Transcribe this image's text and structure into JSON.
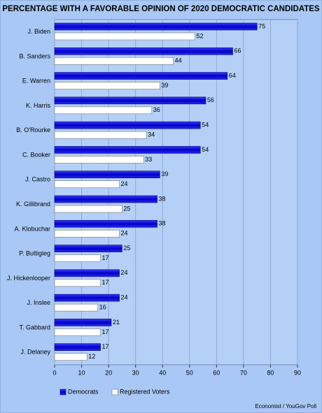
{
  "chart_data": {
    "type": "bar",
    "orientation": "horizontal",
    "title": "PERCENTAGE WITH A FAVORABLE OPINION OF 2020 DEMOCRATIC CANDIDATES",
    "categories": [
      "J. Biden",
      "B. Sanders",
      "E. Warren",
      "K. Harris",
      "B. O'Rourke",
      "C. Booker",
      "J. Castro",
      "K. Gillibrand",
      "A. Klobuchar",
      "P. Buttigieg",
      "J. Hickenlooper",
      "J. Inslee",
      "T. Gabbard",
      "J. Delaney"
    ],
    "series": [
      {
        "name": "Democrats",
        "color": "#1a1ad6",
        "values": [
          75,
          66,
          64,
          56,
          54,
          54,
          39,
          38,
          38,
          25,
          24,
          24,
          21,
          17
        ]
      },
      {
        "name": "Registered Voters",
        "color": "#ffffff",
        "values": [
          52,
          44,
          39,
          36,
          34,
          33,
          24,
          25,
          24,
          17,
          17,
          16,
          17,
          12
        ]
      }
    ],
    "xlim": [
      0,
      90
    ],
    "xticks": [
      0,
      10,
      20,
      30,
      40,
      50,
      60,
      70,
      80,
      90
    ],
    "grid": true,
    "legend": "bottom",
    "source": "Economist / YouGov Poll"
  }
}
